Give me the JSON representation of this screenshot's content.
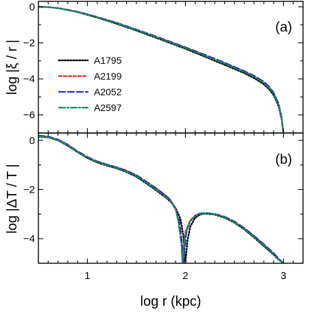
{
  "chart_data": [
    {
      "type": "line",
      "panel_label": "(a)",
      "xlabel": "",
      "ylabel": "log |ξ / r |",
      "xlim": [
        0.5,
        3.2
      ],
      "ylim": [
        -7.0,
        0.3
      ],
      "x_ticks": [
        1,
        2,
        3
      ],
      "y_ticks": [
        0,
        -2,
        -4,
        -6
      ],
      "y_tick_labels": [
        "0",
        "−2",
        "−4",
        "−6"
      ],
      "legend": {
        "placement": "middle-left",
        "entries": [
          "A1795",
          "A2199",
          "A2052",
          "A2597"
        ]
      },
      "series": [
        {
          "name": "A1795",
          "color": "#000000",
          "style": "dotted",
          "x": [
            0.5,
            0.6,
            0.7,
            0.8,
            0.9,
            1.0,
            1.1,
            1.2,
            1.3,
            1.4,
            1.5,
            1.6,
            1.7,
            1.8,
            1.9,
            2.0,
            2.1,
            2.2,
            2.3,
            2.4,
            2.5,
            2.6,
            2.7,
            2.8,
            2.85,
            2.9,
            2.95,
            2.98,
            3.0
          ],
          "y": [
            0.0,
            -0.02,
            -0.08,
            -0.18,
            -0.3,
            -0.45,
            -0.6,
            -0.77,
            -0.95,
            -1.13,
            -1.32,
            -1.52,
            -1.72,
            -1.92,
            -2.12,
            -2.33,
            -2.55,
            -2.77,
            -3.0,
            -3.22,
            -3.45,
            -3.68,
            -3.95,
            -4.3,
            -4.55,
            -4.9,
            -5.5,
            -6.2,
            -7.0
          ]
        },
        {
          "name": "A2199",
          "color": "#e0251f",
          "style": "short-dash",
          "x": [
            0.5,
            0.6,
            0.7,
            0.8,
            0.9,
            1.0,
            1.1,
            1.2,
            1.3,
            1.4,
            1.5,
            1.6,
            1.7,
            1.8,
            1.9,
            2.0,
            2.1,
            2.2,
            2.3,
            2.4,
            2.5,
            2.6,
            2.7,
            2.8,
            2.85,
            2.9,
            2.95,
            2.98,
            3.0
          ],
          "y": [
            0.0,
            -0.02,
            -0.07,
            -0.17,
            -0.28,
            -0.42,
            -0.57,
            -0.73,
            -0.9,
            -1.08,
            -1.27,
            -1.46,
            -1.66,
            -1.86,
            -2.06,
            -2.26,
            -2.47,
            -2.69,
            -2.91,
            -3.13,
            -3.36,
            -3.59,
            -3.85,
            -4.18,
            -4.43,
            -4.78,
            -5.4,
            -6.1,
            -7.0
          ]
        },
        {
          "name": "A2052",
          "color": "#1f2fcf",
          "style": "long-dash",
          "x": [
            0.5,
            0.6,
            0.7,
            0.8,
            0.9,
            1.0,
            1.1,
            1.2,
            1.3,
            1.4,
            1.5,
            1.6,
            1.7,
            1.8,
            1.9,
            2.0,
            2.1,
            2.2,
            2.3,
            2.4,
            2.5,
            2.6,
            2.7,
            2.8,
            2.85,
            2.9,
            2.95,
            2.98,
            3.0
          ],
          "y": [
            0.0,
            -0.02,
            -0.07,
            -0.16,
            -0.27,
            -0.41,
            -0.56,
            -0.72,
            -0.89,
            -1.07,
            -1.26,
            -1.45,
            -1.64,
            -1.84,
            -2.04,
            -2.24,
            -2.45,
            -2.66,
            -2.88,
            -3.1,
            -3.33,
            -3.56,
            -3.82,
            -4.15,
            -4.4,
            -4.75,
            -5.35,
            -6.05,
            -7.0
          ]
        },
        {
          "name": "A2597",
          "color": "#1b8a5a",
          "style": "dash-dot",
          "x": [
            0.5,
            0.6,
            0.7,
            0.8,
            0.9,
            1.0,
            1.1,
            1.2,
            1.3,
            1.4,
            1.5,
            1.6,
            1.7,
            1.8,
            1.9,
            2.0,
            2.1,
            2.2,
            2.3,
            2.4,
            2.5,
            2.6,
            2.7,
            2.8,
            2.85,
            2.9,
            2.95,
            2.98,
            3.0
          ],
          "y": [
            0.0,
            -0.02,
            -0.08,
            -0.17,
            -0.29,
            -0.43,
            -0.58,
            -0.75,
            -0.92,
            -1.1,
            -1.29,
            -1.48,
            -1.68,
            -1.88,
            -2.08,
            -2.29,
            -2.5,
            -2.72,
            -2.94,
            -3.16,
            -3.39,
            -3.62,
            -3.88,
            -4.22,
            -4.47,
            -4.82,
            -5.45,
            -6.15,
            -7.0
          ]
        }
      ]
    },
    {
      "type": "line",
      "panel_label": "(b)",
      "xlabel": "log r (kpc)",
      "ylabel": "log |ΔT / T |",
      "xlim": [
        0.5,
        3.2
      ],
      "ylim": [
        -5.0,
        0.3
      ],
      "x_ticks": [
        1,
        2,
        3
      ],
      "x_tick_labels": [
        "1",
        "2",
        "3"
      ],
      "y_ticks": [
        0,
        -2,
        -4
      ],
      "y_tick_labels": [
        "0",
        "−2",
        "−4"
      ],
      "series": [
        {
          "name": "A1795",
          "color": "#000000",
          "style": "dotted",
          "x": [
            0.5,
            0.6,
            0.7,
            0.8,
            0.9,
            1.0,
            1.1,
            1.2,
            1.3,
            1.4,
            1.5,
            1.6,
            1.7,
            1.8,
            1.85,
            1.9,
            1.95,
            1.98,
            2.0,
            2.02,
            2.05,
            2.1,
            2.15,
            2.2,
            2.3,
            2.4,
            2.5,
            2.6,
            2.7,
            2.8,
            2.9,
            2.95,
            3.0
          ],
          "y": [
            0.15,
            0.12,
            0.0,
            -0.22,
            -0.48,
            -0.72,
            -0.9,
            -1.03,
            -1.14,
            -1.29,
            -1.48,
            -1.75,
            -2.03,
            -2.33,
            -2.5,
            -2.75,
            -3.2,
            -3.9,
            -5.0,
            -4.1,
            -3.5,
            -3.15,
            -3.02,
            -2.98,
            -3.02,
            -3.15,
            -3.35,
            -3.62,
            -3.95,
            -4.3,
            -4.65,
            -4.85,
            -5.0
          ]
        },
        {
          "name": "A2199",
          "color": "#e0251f",
          "style": "short-dash",
          "x": [
            0.5,
            0.6,
            0.7,
            0.8,
            0.9,
            1.0,
            1.1,
            1.2,
            1.3,
            1.4,
            1.5,
            1.6,
            1.7,
            1.8,
            1.85,
            1.9,
            1.93,
            1.96,
            1.97,
            2.0,
            2.05,
            2.1,
            2.15,
            2.2,
            2.3,
            2.4,
            2.5,
            2.6,
            2.7,
            2.8,
            2.9,
            2.95,
            3.0
          ],
          "y": [
            0.18,
            0.15,
            0.03,
            -0.18,
            -0.45,
            -0.68,
            -0.86,
            -0.99,
            -1.1,
            -1.24,
            -1.42,
            -1.68,
            -1.95,
            -2.25,
            -2.45,
            -2.8,
            -3.3,
            -4.2,
            -5.0,
            -3.7,
            -3.25,
            -3.05,
            -2.98,
            -2.96,
            -3.0,
            -3.12,
            -3.32,
            -3.58,
            -3.9,
            -4.25,
            -4.6,
            -4.82,
            -5.0
          ]
        },
        {
          "name": "A2052",
          "color": "#1f2fcf",
          "style": "long-dash",
          "x": [
            0.5,
            0.6,
            0.7,
            0.8,
            0.9,
            1.0,
            1.1,
            1.2,
            1.3,
            1.4,
            1.5,
            1.6,
            1.7,
            1.8,
            1.85,
            1.9,
            1.94,
            1.97,
            1.98,
            2.01,
            2.05,
            2.1,
            2.15,
            2.2,
            2.3,
            2.4,
            2.5,
            2.6,
            2.7,
            2.8,
            2.9,
            2.95,
            3.0
          ],
          "y": [
            0.2,
            0.16,
            0.04,
            -0.17,
            -0.44,
            -0.67,
            -0.85,
            -0.98,
            -1.09,
            -1.23,
            -1.41,
            -1.67,
            -1.94,
            -2.24,
            -2.44,
            -2.78,
            -3.3,
            -4.3,
            -5.0,
            -3.75,
            -3.28,
            -3.06,
            -2.97,
            -2.95,
            -2.99,
            -3.1,
            -3.3,
            -3.56,
            -3.88,
            -4.22,
            -4.58,
            -4.8,
            -5.0
          ]
        },
        {
          "name": "A2597",
          "color": "#1b8a5a",
          "style": "dash-dot",
          "x": [
            0.5,
            0.6,
            0.7,
            0.8,
            0.9,
            1.0,
            1.1,
            1.2,
            1.3,
            1.4,
            1.5,
            1.6,
            1.7,
            1.8,
            1.85,
            1.9,
            1.93,
            1.96,
            1.97,
            2.0,
            2.05,
            2.1,
            2.15,
            2.2,
            2.3,
            2.4,
            2.5,
            2.6,
            2.7,
            2.8,
            2.9,
            2.95,
            3.0
          ],
          "y": [
            0.16,
            0.13,
            0.01,
            -0.2,
            -0.47,
            -0.7,
            -0.88,
            -1.01,
            -1.12,
            -1.27,
            -1.45,
            -1.72,
            -2.0,
            -2.3,
            -2.48,
            -2.82,
            -3.35,
            -4.3,
            -5.0,
            -3.8,
            -3.3,
            -3.08,
            -3.0,
            -2.97,
            -3.01,
            -3.13,
            -3.33,
            -3.6,
            -3.92,
            -4.27,
            -4.62,
            -4.84,
            -5.0
          ]
        }
      ]
    }
  ]
}
